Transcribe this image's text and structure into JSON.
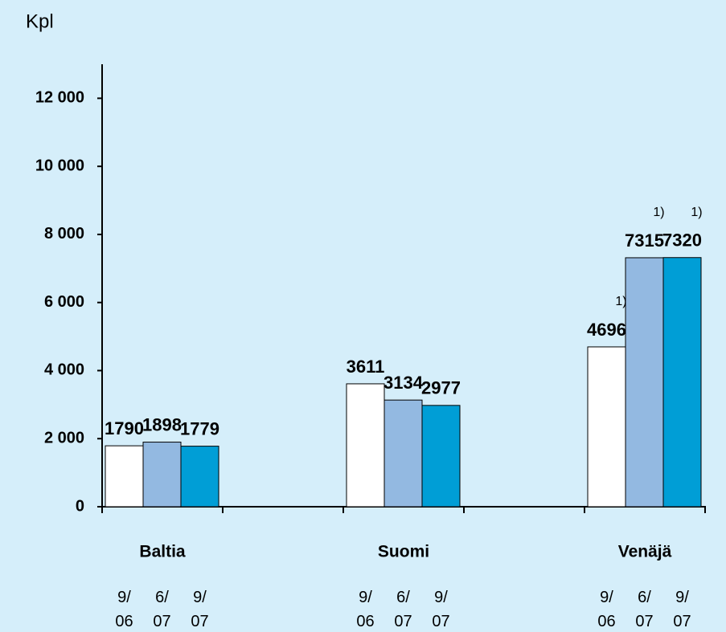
{
  "chart_data": {
    "type": "bar",
    "y_label": "Kpl",
    "categories": [
      "Baltia",
      "Suomi",
      "Venäjä"
    ],
    "series": [
      {
        "name": "9/\n06",
        "color": "#ffffff",
        "values": [
          1790,
          3611,
          4696
        ],
        "notes": [
          null,
          null,
          "1)"
        ]
      },
      {
        "name": "6/\n07",
        "color": "#93b9e1",
        "values": [
          1898,
          3134,
          7315
        ],
        "notes": [
          null,
          null,
          "1)"
        ]
      },
      {
        "name": "9/\n07",
        "color": "#009ed6",
        "values": [
          1779,
          2977,
          7320
        ],
        "notes": [
          null,
          null,
          "1)"
        ]
      }
    ],
    "ylim": [
      0,
      13000
    ],
    "yticks": [
      0,
      {
        "value": 2000,
        "label": "2 000"
      },
      {
        "value": 4000,
        "label": "4 000"
      },
      {
        "value": 6000,
        "label": "6 000"
      },
      {
        "value": 8000,
        "label": "8 000"
      },
      {
        "value": 10000,
        "label": "10 000"
      },
      {
        "value": 12000,
        "label": "12 000"
      }
    ]
  }
}
